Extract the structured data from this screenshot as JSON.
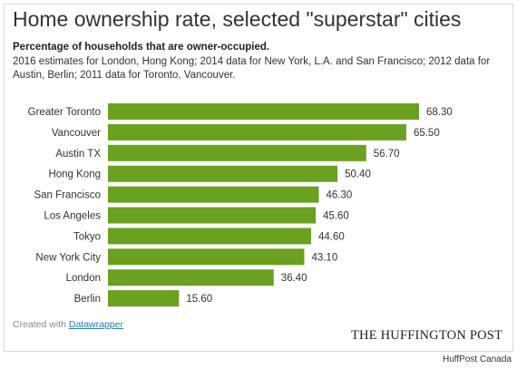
{
  "chart_data": {
    "type": "bar",
    "orientation": "horizontal",
    "title": "Home ownership rate, selected \"superstar\" cities",
    "subtitle_bold": "Percentage of households that are owner-occupied.",
    "subtitle": "2016 estimates for London, Hong Kong; 2014 data for New York, L.A. and San Francisco; 2012 data for Austin, Berlin; 2011 data for Toronto, Vancouver.",
    "categories": [
      "Greater Toronto",
      "Vancouver",
      "Austin TX",
      "Hong Kong",
      "San Francisco",
      "Los Angeles",
      "Tokyo",
      "New York City",
      "London",
      "Berlin"
    ],
    "values": [
      68.3,
      65.5,
      56.7,
      50.4,
      46.3,
      45.6,
      44.6,
      43.1,
      36.4,
      15.6
    ],
    "value_labels": [
      "68.30",
      "65.50",
      "56.70",
      "50.40",
      "46.30",
      "45.60",
      "44.60",
      "43.10",
      "36.40",
      "15.60"
    ],
    "xlim": [
      0,
      68.3
    ],
    "bar_color": "#6aa121",
    "grid": false,
    "legend": "none"
  },
  "credit": {
    "prefix": "Created with",
    "link_label": "Datawrapper"
  },
  "brand": "THE HUFFINGTON POST",
  "footer": "HuffPost Canada"
}
